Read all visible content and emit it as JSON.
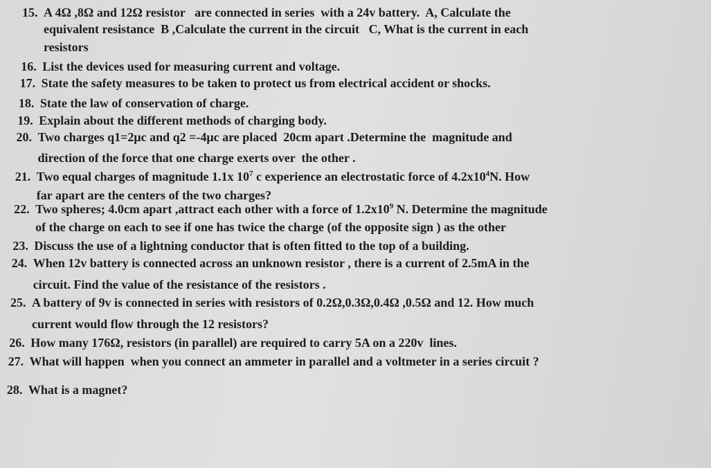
{
  "questions": [
    {
      "number": "15.",
      "lines": [
        [
          {
            "text": "A 4Ω ,8Ω and 12Ω resistor   are connected in series  with a 24v battery.  A, Calculate the"
          }
        ],
        [
          {
            "text": "equivalent resistance  B ,Calculate the current in the circuit   C, What is the current in each"
          }
        ],
        [
          {
            "text": "resistors"
          }
        ]
      ]
    },
    {
      "number": "16.",
      "lines": [
        [
          {
            "text": "List the devices used for measuring current and voltage."
          }
        ]
      ]
    },
    {
      "number": "17.",
      "lines": [
        [
          {
            "text": "State the safety measures to be taken to protect us from electrical accident or shocks."
          }
        ]
      ]
    },
    {
      "number": "18.",
      "lines": [
        [
          {
            "text": "State the law of conservation of charge."
          }
        ]
      ]
    },
    {
      "number": "19.",
      "lines": [
        [
          {
            "text": "Explain about the different methods of charging body."
          }
        ]
      ]
    },
    {
      "number": "20.",
      "lines": [
        [
          {
            "text": "Two charges q1=2μc and q2 =-4μc are placed  20cm apart .Determine the  magnitude and"
          }
        ],
        [
          {
            "text": "direction of the force that one charge exerts over  the other ."
          }
        ]
      ]
    },
    {
      "number": "21.",
      "lines": [
        [
          {
            "text": "Two equal charges of magnitude 1.1x 10"
          },
          {
            "sup": "7"
          },
          {
            "text": " c experience an electrostatic force of 4.2x10"
          },
          {
            "sup": "4"
          },
          {
            "text": "N. How"
          }
        ],
        [
          {
            "text": "far apart are the centers of the two charges?"
          }
        ]
      ]
    },
    {
      "number": "22.",
      "lines": [
        [
          {
            "text": "Two spheres; 4.0cm apart ,attract each other with a force of 1.2x10"
          },
          {
            "sup": "9"
          },
          {
            "text": " N. Determine the magnitude"
          }
        ],
        [
          {
            "text": "of the charge on each to see if one has twice the charge (of the opposite sign ) as the other"
          }
        ]
      ]
    },
    {
      "number": "23.",
      "lines": [
        [
          {
            "text": "Discuss the use of a lightning conductor that is often fitted to the top of a building."
          }
        ]
      ]
    },
    {
      "number": "24.",
      "lines": [
        [
          {
            "text": "When 12v battery is connected across an unknown resistor , there is a current of 2.5mA in the"
          }
        ],
        [
          {
            "text": "circuit. Find the value of the resistance of the resistors ."
          }
        ]
      ]
    },
    {
      "number": "25.",
      "lines": [
        [
          {
            "text": "A battery of 9v is connected in series with resistors of 0.2Ω,0.3Ω,0.4Ω ,0.5Ω and 12. How much"
          }
        ],
        [
          {
            "text": "current would flow through the 12 resistors?"
          }
        ]
      ]
    },
    {
      "number": "26.",
      "lines": [
        [
          {
            "text": "How many 176Ω, resistors (in parallel) are required to carry 5A on a 220v  lines."
          }
        ]
      ]
    },
    {
      "number": "27.",
      "lines": [
        [
          {
            "text": "What will happen  when you connect an ammeter in parallel and a voltmeter in a series circuit ?"
          }
        ]
      ]
    },
    {
      "number": "28.",
      "lines": [
        [
          {
            "text": "What is a magnet?"
          }
        ]
      ]
    }
  ]
}
